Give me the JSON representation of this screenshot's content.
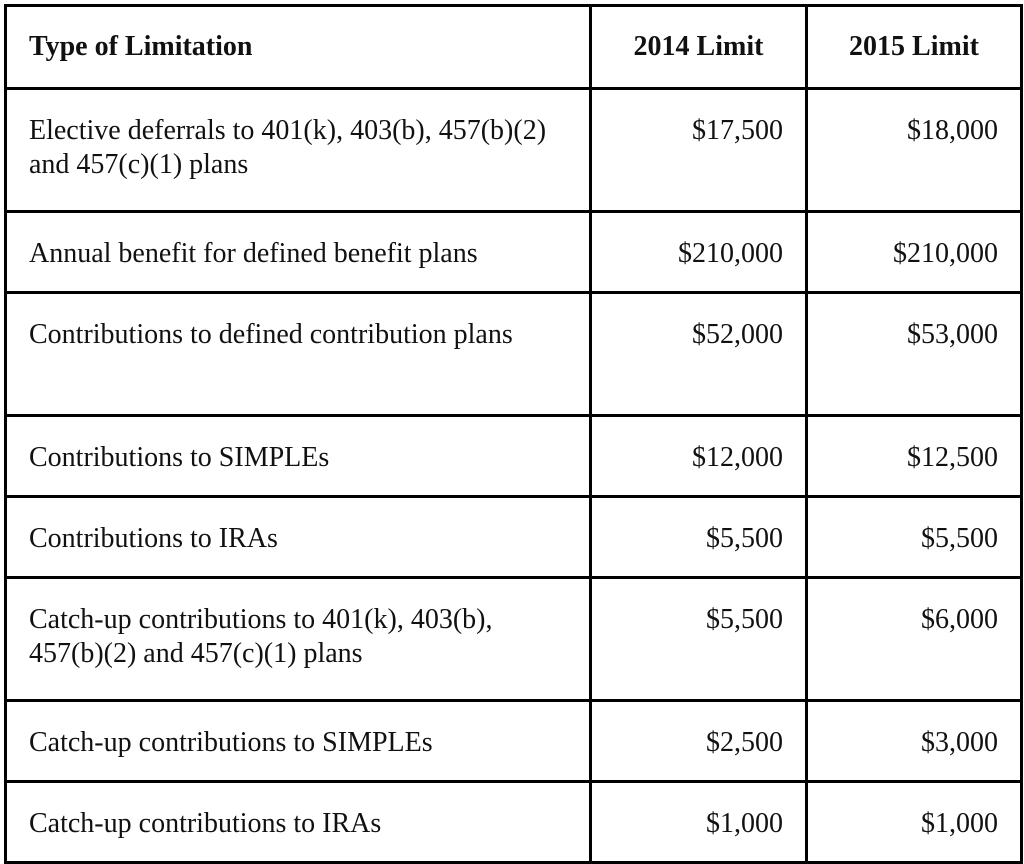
{
  "table": {
    "headers": [
      "Type of Limitation",
      "2014 Limit",
      "2015 Limit"
    ],
    "rows": [
      {
        "type": "Elective deferrals to 401(k), 403(b), 457(b)(2) and 457(c)(1) plans",
        "limit_2014": "$17,500",
        "limit_2015": "$18,000"
      },
      {
        "type": "Annual benefit for defined benefit plans",
        "limit_2014": "$210,000",
        "limit_2015": "$210,000"
      },
      {
        "type": "Contributions to defined contribution plans",
        "limit_2014": "$52,000",
        "limit_2015": "$53,000"
      },
      {
        "type": "Contributions to SIMPLEs",
        "limit_2014": "$12,000",
        "limit_2015": "$12,500"
      },
      {
        "type": "Contributions to IRAs",
        "limit_2014": "$5,500",
        "limit_2015": "$5,500"
      },
      {
        "type": "Catch-up contributions to 401(k), 403(b), 457(b)(2) and 457(c)(1) plans",
        "limit_2014": "$5,500",
        "limit_2015": "$6,000"
      },
      {
        "type": "Catch-up contributions to SIMPLEs",
        "limit_2014": "$2,500",
        "limit_2015": "$3,000"
      },
      {
        "type": "Catch-up contributions to IRAs",
        "limit_2014": "$1,000",
        "limit_2015": "$1,000"
      }
    ]
  }
}
